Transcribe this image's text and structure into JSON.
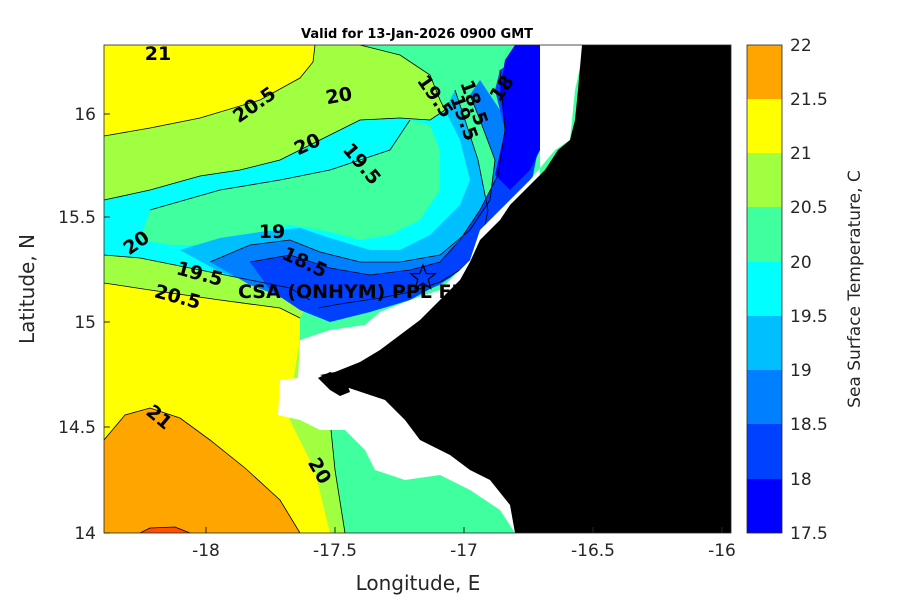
{
  "title": "Valid for 13-Jan-2026 0900 GMT",
  "colors": {
    "17.5": "#0000ff",
    "18": "#0040ff",
    "18.5": "#0080ff",
    "19": "#00bfff",
    "19.5": "#00ffff",
    "20": "#40ff9f",
    "20.5": "#a0ff40",
    "21": "#ffff00",
    "21.5": "#ffa500",
    "22": "#ff5000",
    "land": "#000000",
    "mask": "#ffffff"
  },
  "site": {
    "label": "CSA (ONHYM) PPL FP",
    "marker": "star-icon"
  },
  "chart_data": {
    "type": "heatmap",
    "title": "Valid for 13-Jan-2026 0900 GMT",
    "xlabel": "Longitude, E",
    "ylabel": "Latitude, N",
    "xlim": [
      -18.35,
      -15.93
    ],
    "ylim": [
      14,
      16.35
    ],
    "x_ticks": [
      "-18",
      "-17.5",
      "-17",
      "-16.5",
      "-16"
    ],
    "y_ticks": [
      "14",
      "14.5",
      "15",
      "15.5",
      "16"
    ],
    "colorbar": {
      "label": "Sea Surface Temperature, C",
      "ticks": [
        "17.5",
        "18",
        "18.5",
        "19",
        "19.5",
        "20",
        "20.5",
        "21",
        "21.5",
        "22"
      ],
      "range": [
        17.5,
        22
      ]
    },
    "contour_labels": [
      "21",
      "20.5",
      "20",
      "19.5",
      "18.5",
      "19.5",
      "18",
      "20",
      "19.5",
      "19",
      "18.5",
      "20",
      "19.5",
      "20.5",
      "21",
      "20"
    ]
  }
}
